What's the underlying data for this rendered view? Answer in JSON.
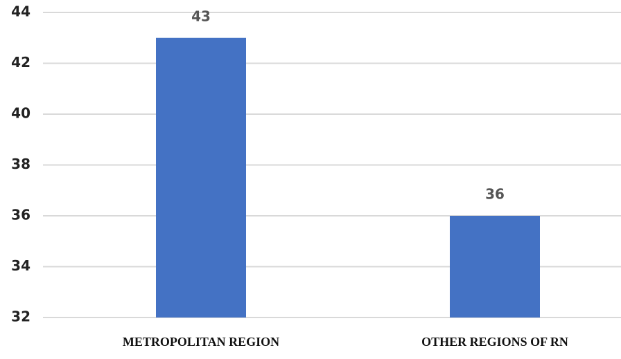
{
  "chart_data": {
    "type": "bar",
    "categories": [
      "METROPOLITAN REGION",
      "OTHER REGIONS OF RN"
    ],
    "values": [
      43,
      36
    ],
    "color": "#4472c4",
    "ylim": [
      32,
      44
    ],
    "yticks": [
      32,
      34,
      36,
      38,
      40,
      42,
      44
    ],
    "grid": true
  }
}
